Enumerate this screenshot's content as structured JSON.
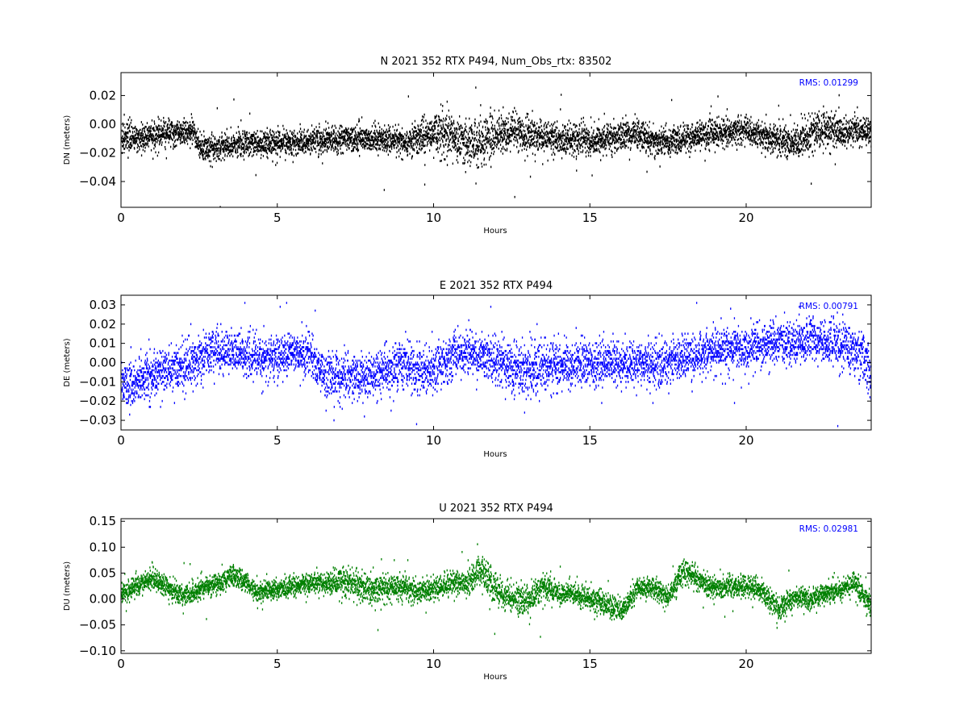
{
  "chart_data": [
    {
      "type": "scatter",
      "title": "N 2021 352 RTX  P494, Num_Obs_rtx: 83502",
      "xlabel": "Hours",
      "ylabel": "DN (meters)",
      "xlim": [
        0,
        24
      ],
      "ylim": [
        -0.058,
        0.036
      ],
      "xticks": [
        0,
        5,
        10,
        15,
        20
      ],
      "yticks": [
        -0.04,
        -0.02,
        0.0,
        0.02
      ],
      "ytick_labels": [
        "−0.04",
        "−0.02",
        "0.00",
        "0.02"
      ],
      "grid": false,
      "annotation": "RMS:  0.01299",
      "annotation_position": "top-right",
      "annotation_color": "#0000ff",
      "series": [
        {
          "color": "#000000",
          "envelope": {
            "x": [
              0,
              0.5,
              1,
              1.5,
              2,
              2.3,
              2.5,
              3,
              4,
              5,
              6,
              7,
              8,
              9,
              9.5,
              10,
              10.5,
              11,
              11.5,
              12,
              12.5,
              13,
              14,
              15,
              16,
              16.5,
              17,
              17.5,
              18,
              19,
              20,
              21,
              21.5,
              22,
              22.5,
              23,
              24
            ],
            "center": [
              -0.01,
              -0.01,
              -0.008,
              -0.006,
              -0.006,
              -0.004,
              -0.016,
              -0.016,
              -0.013,
              -0.014,
              -0.012,
              -0.01,
              -0.01,
              -0.012,
              -0.01,
              -0.005,
              -0.008,
              -0.013,
              -0.012,
              -0.008,
              -0.005,
              -0.008,
              -0.01,
              -0.012,
              -0.008,
              -0.006,
              -0.012,
              -0.014,
              -0.01,
              -0.006,
              -0.004,
              -0.012,
              -0.014,
              -0.008,
              -0.003,
              -0.005,
              -0.005
            ],
            "spread": [
              0.009,
              0.009,
              0.009,
              0.009,
              0.009,
              0.008,
              0.009,
              0.009,
              0.009,
              0.009,
              0.009,
              0.009,
              0.009,
              0.009,
              0.012,
              0.014,
              0.015,
              0.016,
              0.016,
              0.014,
              0.013,
              0.012,
              0.011,
              0.011,
              0.01,
              0.01,
              0.01,
              0.01,
              0.009,
              0.009,
              0.009,
              0.011,
              0.012,
              0.012,
              0.012,
              0.01,
              0.009
            ]
          }
        }
      ]
    },
    {
      "type": "scatter",
      "title": "E 2021 352 RTX  P494",
      "xlabel": "Hours",
      "ylabel": "DE (meters)",
      "xlim": [
        0,
        24
      ],
      "ylim": [
        -0.035,
        0.035
      ],
      "xticks": [
        0,
        5,
        10,
        15,
        20
      ],
      "yticks": [
        -0.03,
        -0.02,
        -0.01,
        0.0,
        0.01,
        0.02,
        0.03
      ],
      "ytick_labels": [
        "−0.03",
        "−0.02",
        "−0.01",
        "0.00",
        "0.01",
        "0.02",
        "0.03"
      ],
      "grid": false,
      "annotation": "RMS:  0.00791",
      "annotation_position": "top-right",
      "annotation_color": "#0000ff",
      "quantization": 0.001,
      "series": [
        {
          "color": "#0000ff",
          "envelope": {
            "x": [
              0,
              0.5,
              1,
              1.5,
              2,
              2.5,
              3,
              3.5,
              4,
              4.5,
              5,
              5.5,
              6,
              6.5,
              7,
              7.5,
              8,
              8.5,
              9,
              9.5,
              10,
              10.5,
              11,
              11.5,
              12,
              12.5,
              13,
              13.5,
              14,
              15,
              16,
              17,
              18,
              18.5,
              19,
              20,
              21,
              22,
              23,
              23.7,
              24
            ],
            "center": [
              -0.01,
              -0.01,
              -0.006,
              -0.004,
              -0.002,
              0.002,
              0.006,
              0.006,
              0.003,
              0.002,
              0.004,
              0.006,
              0.004,
              -0.006,
              -0.008,
              -0.008,
              -0.008,
              -0.004,
              -0.002,
              -0.003,
              -0.004,
              0.002,
              0.006,
              0.004,
              0.0,
              -0.004,
              -0.004,
              -0.002,
              -0.002,
              0.0,
              -0.001,
              -0.001,
              0.002,
              0.004,
              0.006,
              0.008,
              0.01,
              0.011,
              0.01,
              0.005,
              -0.008
            ],
            "spread": [
              0.012,
              0.012,
              0.011,
              0.011,
              0.011,
              0.011,
              0.011,
              0.011,
              0.011,
              0.011,
              0.011,
              0.011,
              0.011,
              0.012,
              0.012,
              0.012,
              0.012,
              0.012,
              0.012,
              0.012,
              0.011,
              0.011,
              0.011,
              0.011,
              0.012,
              0.013,
              0.013,
              0.013,
              0.012,
              0.011,
              0.011,
              0.011,
              0.011,
              0.011,
              0.011,
              0.011,
              0.011,
              0.011,
              0.012,
              0.013,
              0.014
            ]
          }
        }
      ]
    },
    {
      "type": "scatter",
      "title": "U 2021 352 RTX  P494",
      "xlabel": "Hours",
      "ylabel": "DU (meters)",
      "xlim": [
        0,
        24
      ],
      "ylim": [
        -0.105,
        0.155
      ],
      "xticks": [
        0,
        5,
        10,
        15,
        20
      ],
      "yticks": [
        -0.1,
        -0.05,
        0.0,
        0.05,
        0.1,
        0.15
      ],
      "ytick_labels": [
        "−0.10",
        "−0.05",
        "0.00",
        "0.05",
        "0.10",
        "0.15"
      ],
      "grid": false,
      "annotation": "RMS:  0.02981",
      "annotation_position": "top-right",
      "annotation_color": "#0000ff",
      "series": [
        {
          "color": "#008000",
          "envelope": {
            "x": [
              0,
              0.5,
              1,
              1.5,
              2,
              2.5,
              3,
              3.5,
              4,
              4.5,
              5,
              6,
              6.5,
              7,
              7.5,
              8,
              8.5,
              9,
              9.5,
              10,
              10.5,
              11,
              11.5,
              12,
              12.5,
              13,
              13.5,
              14,
              14.5,
              15,
              15.5,
              16,
              16.5,
              17,
              17.5,
              18,
              18.5,
              19,
              20,
              20.5,
              21,
              21.5,
              22,
              23,
              23.5,
              24
            ],
            "center": [
              0.01,
              0.025,
              0.04,
              0.02,
              0.005,
              0.02,
              0.025,
              0.045,
              0.03,
              0.01,
              0.02,
              0.03,
              0.03,
              0.035,
              0.03,
              0.015,
              0.025,
              0.02,
              0.015,
              0.02,
              0.03,
              0.03,
              0.055,
              0.015,
              0.0,
              -0.005,
              0.025,
              0.01,
              0.01,
              0.0,
              -0.01,
              -0.025,
              0.02,
              0.02,
              0.005,
              0.055,
              0.035,
              0.02,
              0.025,
              0.015,
              -0.02,
              0.005,
              0.0,
              0.015,
              0.03,
              -0.02
            ],
            "spread": [
              0.02,
              0.02,
              0.02,
              0.02,
              0.02,
              0.02,
              0.02,
              0.02,
              0.02,
              0.02,
              0.02,
              0.02,
              0.02,
              0.025,
              0.028,
              0.028,
              0.028,
              0.025,
              0.022,
              0.02,
              0.02,
              0.025,
              0.035,
              0.03,
              0.025,
              0.028,
              0.025,
              0.022,
              0.02,
              0.022,
              0.022,
              0.022,
              0.02,
              0.02,
              0.02,
              0.025,
              0.02,
              0.02,
              0.02,
              0.02,
              0.022,
              0.022,
              0.02,
              0.02,
              0.022,
              0.022
            ]
          }
        }
      ]
    }
  ]
}
